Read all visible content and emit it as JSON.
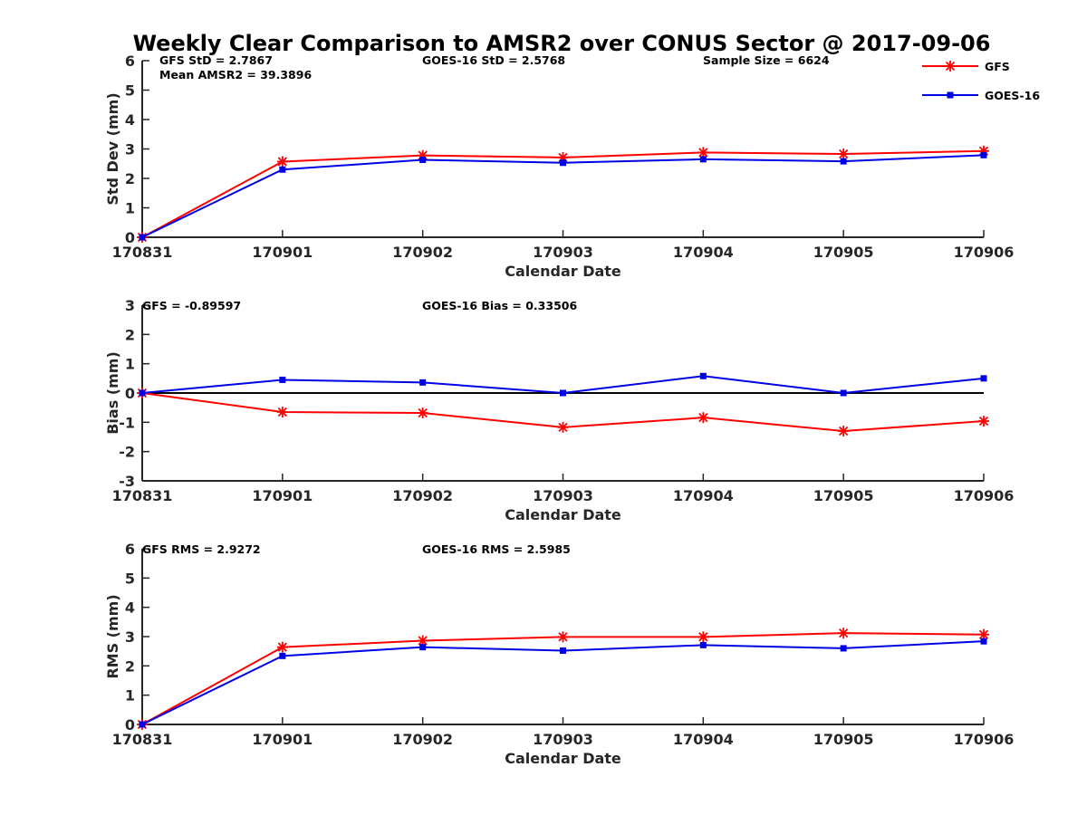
{
  "title": "Weekly Clear Comparison to AMSR2 over CONUS Sector @ 2017-09-06",
  "colors": {
    "GFS": "#ff0000",
    "GOES-16": "#0000e6",
    "axis": "#262626",
    "zero_line": "#000000"
  },
  "legend": {
    "position": "top-right",
    "entries": [
      {
        "label": "GFS",
        "marker": "asterisk"
      },
      {
        "label": "GOES-16",
        "marker": "square"
      }
    ]
  },
  "chart_data": [
    {
      "type": "line",
      "xlabel": "Calendar Date",
      "ylabel": "Std Dev (mm)",
      "ylim": [
        0,
        6
      ],
      "yticks": [
        "0",
        "1",
        "2",
        "3",
        "4",
        "5",
        "6"
      ],
      "categories": [
        "170831",
        "170901",
        "170902",
        "170903",
        "170904",
        "170905",
        "170906"
      ],
      "series": [
        {
          "name": "GFS",
          "values": [
            0,
            2.57,
            2.78,
            2.71,
            2.88,
            2.83,
            2.93
          ]
        },
        {
          "name": "GOES-16",
          "values": [
            0,
            2.3,
            2.63,
            2.53,
            2.65,
            2.58,
            2.79
          ]
        }
      ],
      "annotations": [
        "GFS StD = 2.7867",
        "Mean AMSR2 = 39.3896",
        "GOES-16 StD = 2.5768",
        "Sample Size = 6624"
      ]
    },
    {
      "type": "line",
      "xlabel": "Calendar Date",
      "ylabel": "Bias (mm)",
      "ylim": [
        -3,
        3
      ],
      "yticks": [
        "-3",
        "-2",
        "-1",
        "0",
        "1",
        "2",
        "3"
      ],
      "zero_line": true,
      "categories": [
        "170831",
        "170901",
        "170902",
        "170903",
        "170904",
        "170905",
        "170906"
      ],
      "series": [
        {
          "name": "GFS",
          "values": [
            0,
            -0.65,
            -0.68,
            -1.17,
            -0.84,
            -1.3,
            -0.96
          ]
        },
        {
          "name": "GOES-16",
          "values": [
            0,
            0.45,
            0.36,
            0.0,
            0.58,
            0.0,
            0.5
          ]
        }
      ],
      "annotations": [
        "GFS = -0.89597",
        "GOES-16 Bias  = 0.33506"
      ]
    },
    {
      "type": "line",
      "xlabel": "Calendar Date",
      "ylabel": "RMS (mm)",
      "ylim": [
        0,
        6
      ],
      "yticks": [
        "0",
        "1",
        "2",
        "3",
        "4",
        "5",
        "6"
      ],
      "categories": [
        "170831",
        "170901",
        "170902",
        "170903",
        "170904",
        "170905",
        "170906"
      ],
      "series": [
        {
          "name": "GFS",
          "values": [
            0,
            2.64,
            2.86,
            2.99,
            2.99,
            3.12,
            3.07
          ]
        },
        {
          "name": "GOES-16",
          "values": [
            0,
            2.34,
            2.64,
            2.52,
            2.71,
            2.6,
            2.84
          ]
        }
      ],
      "annotations": [
        "GFS RMS = 2.9272",
        "GOES-16 RMS = 2.5985"
      ]
    }
  ]
}
